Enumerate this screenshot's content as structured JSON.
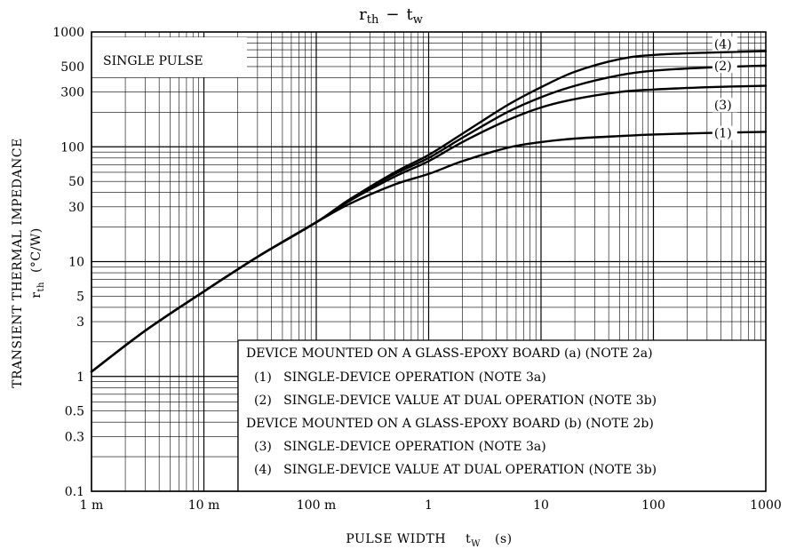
{
  "chart_data": {
    "type": "line",
    "title_main": "r",
    "title_main_sub": "th",
    "title_dash": "−",
    "title_second": "t",
    "title_second_sub": "w",
    "xlabel_main": "PULSE WIDTH",
    "xlabel_symbol": "t",
    "xlabel_symbol_sub": "W",
    "xlabel_unit": "(s)",
    "ylabel_line1": "TRANSIENT THERMAL IMPEDANCE",
    "ylabel_symbol": "r",
    "ylabel_symbol_sub": "th",
    "ylabel_unit": "(°C/W)",
    "x_scale": "log",
    "y_scale": "log",
    "xlim": [
      0.001,
      1000
    ],
    "ylim": [
      0.1,
      1000
    ],
    "grid": true,
    "x_tick_values": [
      0.001,
      0.01,
      0.1,
      1,
      10,
      100,
      1000
    ],
    "x_tick_labels": [
      "1 m",
      "10 m",
      "100 m",
      "1",
      "10",
      "100",
      "1000"
    ],
    "y_tick_values": [
      0.1,
      0.3,
      0.5,
      1,
      3,
      5,
      10,
      30,
      50,
      100,
      300,
      500,
      1000
    ],
    "y_tick_labels": [
      "0.1",
      "0.3",
      "0.5",
      "1",
      "3",
      "5",
      "10",
      "30",
      "50",
      "100",
      "300",
      "500",
      "1000"
    ],
    "annotation_single_pulse": "SINGLE PULSE",
    "legend_lines": [
      "DEVICE MOUNTED ON A GLASS-EPOXY BOARD (a) (NOTE 2a)",
      "(1)   SINGLE-DEVICE OPERATION (NOTE 3a)",
      "(2)   SINGLE-DEVICE VALUE AT DUAL OPERATION (NOTE 3b)",
      "DEVICE MOUNTED ON A GLASS-EPOXY BOARD (b) (NOTE 2b)",
      "(3)   SINGLE-DEVICE OPERATION (NOTE 3a)",
      "(4)   SINGLE-DEVICE VALUE AT DUAL OPERATION (NOTE 3b)"
    ],
    "series": [
      {
        "name": "(1)",
        "x": [
          0.001,
          0.003,
          0.01,
          0.03,
          0.1,
          0.2,
          0.5,
          1,
          2,
          5,
          10,
          20,
          50,
          100,
          300,
          1000
        ],
        "y": [
          1.1,
          2.5,
          5.5,
          11,
          22,
          32,
          47,
          58,
          75,
          98,
          110,
          118,
          124,
          128,
          132,
          135
        ]
      },
      {
        "name": "(2)",
        "x": [
          0.001,
          0.003,
          0.01,
          0.03,
          0.1,
          0.2,
          0.5,
          1,
          2,
          5,
          10,
          20,
          50,
          100,
          300,
          1000
        ],
        "y": [
          1.1,
          2.5,
          5.5,
          11,
          22,
          35,
          58,
          80,
          120,
          200,
          270,
          340,
          420,
          460,
          490,
          510
        ]
      },
      {
        "name": "(3)",
        "x": [
          0.001,
          0.003,
          0.01,
          0.03,
          0.1,
          0.2,
          0.5,
          1,
          2,
          5,
          10,
          20,
          50,
          100,
          300,
          1000
        ],
        "y": [
          1.1,
          2.5,
          5.5,
          11,
          22,
          34,
          55,
          75,
          110,
          170,
          220,
          260,
          300,
          315,
          330,
          340
        ]
      },
      {
        "name": "(4)",
        "x": [
          0.001,
          0.003,
          0.01,
          0.03,
          0.1,
          0.2,
          0.5,
          1,
          2,
          5,
          10,
          20,
          50,
          100,
          300,
          1000
        ],
        "y": [
          1.1,
          2.5,
          5.5,
          11,
          22,
          35,
          60,
          85,
          130,
          230,
          330,
          450,
          580,
          630,
          660,
          680
        ]
      }
    ]
  }
}
